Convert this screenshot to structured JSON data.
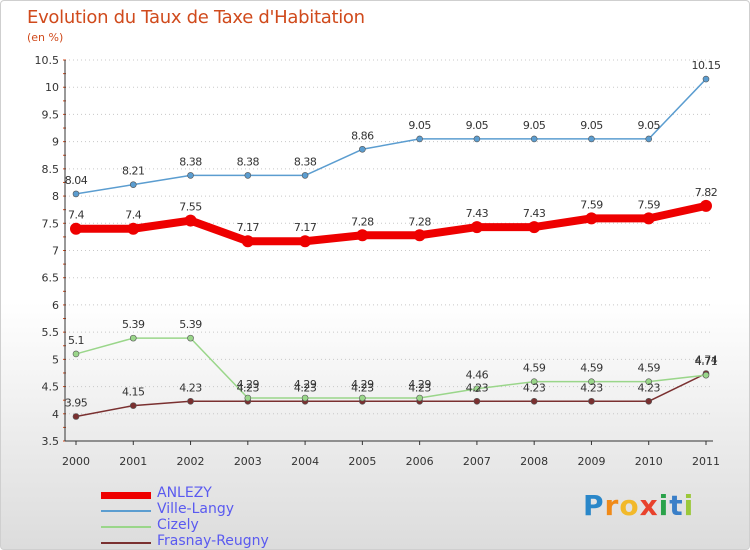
{
  "header": {
    "title": "Evolution du Taux de Taxe d'Habitation",
    "unit": "(en %)"
  },
  "brand": {
    "text": "Proxiti"
  },
  "chart_data": {
    "type": "line",
    "title": "Evolution du Taux de Taxe d'Habitation",
    "ylabel": "(en %)",
    "xlabel": "",
    "x": [
      "2000",
      "2001",
      "2002",
      "2003",
      "2004",
      "2005",
      "2006",
      "2007",
      "2008",
      "2009",
      "2010",
      "2011"
    ],
    "ylim": [
      3.5,
      10.5
    ],
    "yticks": [
      "3.5",
      "4",
      "4.5",
      "5",
      "5.5",
      "6",
      "6.5",
      "7",
      "7.5",
      "8",
      "8.5",
      "9",
      "9.5",
      "10",
      "10.5"
    ],
    "grid": "horizontal",
    "legend_position": "bottom-left",
    "series": [
      {
        "name": "ANLEZY",
        "color": "#ee0000",
        "values": [
          7.4,
          7.4,
          7.55,
          7.17,
          7.17,
          7.28,
          7.28,
          7.43,
          7.43,
          7.59,
          7.59,
          7.82
        ],
        "labels": [
          "7.4",
          "7.4",
          "7.55",
          "7.17",
          "7.17",
          "7.28",
          "7.28",
          "7.43",
          "7.43",
          "7.59",
          "7.59",
          "7.82"
        ]
      },
      {
        "name": "Ville-Langy",
        "color": "#5b9dd0",
        "values": [
          8.04,
          8.21,
          8.38,
          8.38,
          8.38,
          8.86,
          9.05,
          9.05,
          9.05,
          9.05,
          9.05,
          10.15
        ],
        "labels": [
          "8.04",
          "8.21",
          "8.38",
          "8.38",
          "8.38",
          "8.86",
          "9.05",
          "9.05",
          "9.05",
          "9.05",
          "9.05",
          "10.15"
        ]
      },
      {
        "name": "Cizely",
        "color": "#9ad68a",
        "values": [
          5.1,
          5.39,
          5.39,
          4.29,
          4.29,
          4.29,
          4.29,
          4.46,
          4.59,
          4.59,
          4.59,
          4.71
        ],
        "labels": [
          "5.1",
          "5.39",
          "5.39",
          "4.29",
          "4.29",
          "4.29",
          "4.29",
          "4.46",
          "4.59",
          "4.59",
          "4.59",
          "4.71"
        ]
      },
      {
        "name": "Frasnay-Reugny",
        "color": "#7a3030",
        "values": [
          3.95,
          4.15,
          4.23,
          4.23,
          4.23,
          4.23,
          4.23,
          4.23,
          4.23,
          4.23,
          4.23,
          4.74
        ],
        "labels": [
          "3.95",
          "4.15",
          "4.23",
          "4.23",
          "4.23",
          "4.23",
          "4.23",
          "4.23",
          "4.23",
          "4.23",
          "4.23",
          "4.74"
        ]
      }
    ]
  }
}
